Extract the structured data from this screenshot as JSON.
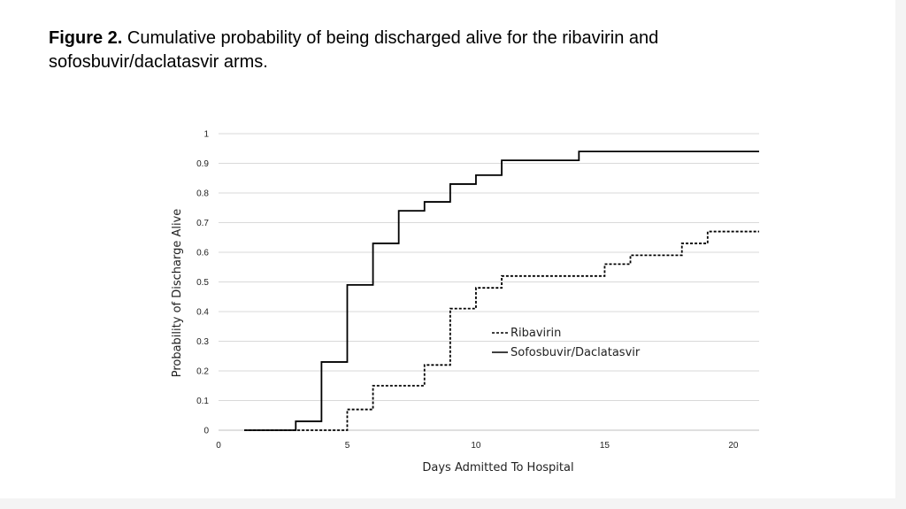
{
  "caption": {
    "label": "Figure 2.",
    "text": " Cumulative probability of being discharged alive for the ribavirin and sofosbuvir/daclatasvir arms."
  },
  "chart_data": {
    "type": "line",
    "step": true,
    "title": "",
    "xlabel": "Days Admitted To Hospital",
    "ylabel": "Probability of Discharge Alive",
    "xlim": [
      0,
      21
    ],
    "ylim": [
      0,
      1
    ],
    "xticks": [
      0,
      5,
      10,
      15,
      20
    ],
    "xtick_labels": [
      "0",
      "5",
      "10",
      "15",
      "20"
    ],
    "yticks": [
      0,
      0.1,
      0.2,
      0.3,
      0.4,
      0.5,
      0.6,
      0.7,
      0.8,
      0.9,
      1
    ],
    "ytick_labels": [
      "0",
      "0.1",
      "0.2",
      "0.3",
      "0.4",
      "0.5",
      "0.6",
      "0.7",
      "0.8",
      "0.9",
      "1"
    ],
    "grid": "horizontal",
    "legend_position": "inside-right",
    "series": [
      {
        "name": "Ribavirin",
        "style": "dashed",
        "color": "#000000",
        "x": [
          1,
          5,
          6,
          8,
          9,
          10,
          11,
          15,
          16,
          18,
          19,
          21
        ],
        "y": [
          0,
          0.07,
          0.15,
          0.22,
          0.41,
          0.48,
          0.52,
          0.56,
          0.59,
          0.63,
          0.67,
          0.67
        ]
      },
      {
        "name": "Sofosbuvir/Daclatasvir",
        "style": "solid",
        "color": "#000000",
        "x": [
          1,
          3,
          4,
          5,
          6,
          7,
          8,
          9,
          10,
          11,
          14,
          21
        ],
        "y": [
          0,
          0.03,
          0.23,
          0.49,
          0.63,
          0.74,
          0.77,
          0.83,
          0.86,
          0.91,
          0.94,
          0.94
        ]
      }
    ]
  }
}
